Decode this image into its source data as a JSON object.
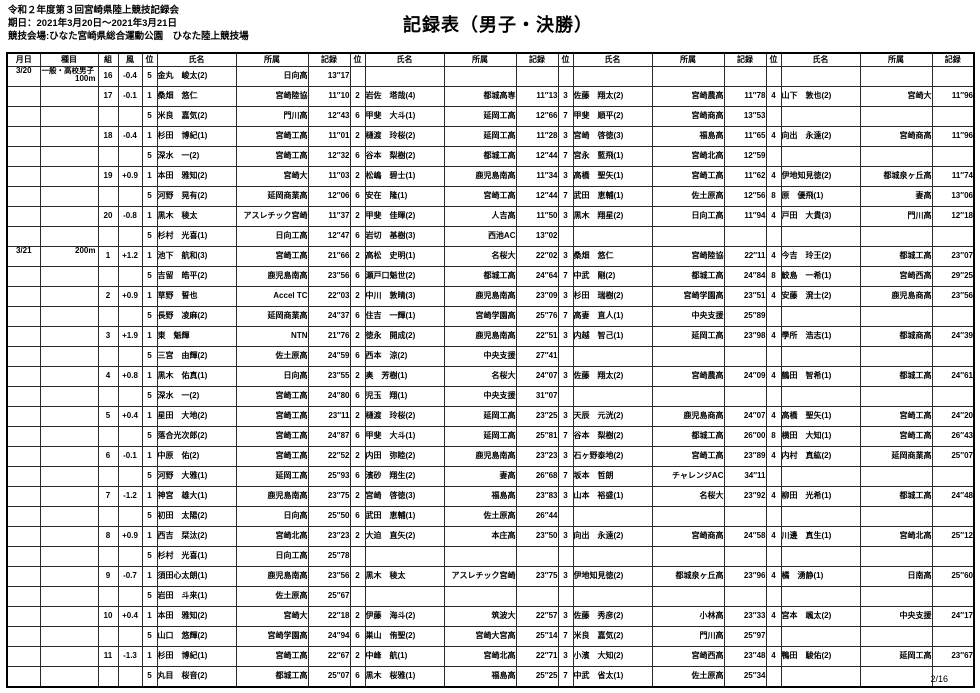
{
  "meta": {
    "competition": "令和２年度第３回宮崎県陸上競技記録会",
    "dates": "期日：2021年3月20日～2021年3月21日",
    "venue": "競技会場:ひなた宮崎県総合運動公園　ひなた陸上競技場",
    "title": "記録表（男子・決勝）",
    "page": "2/16"
  },
  "table": {
    "headers": [
      "月日",
      "種目",
      "組",
      "風",
      "位",
      "氏名",
      "所属",
      "記録",
      "位",
      "氏名",
      "所属",
      "記録",
      "位",
      "氏名",
      "所属",
      "記録",
      "位",
      "氏名",
      "所属",
      "記録"
    ],
    "rows": [
      {
        "date": "3/20",
        "event1": "一般・高校男子",
        "event2": "100m",
        "heat": "16",
        "wind": "-0.4",
        "athletes": [
          {
            "pos": "5",
            "name": "金丸　峻太(2)",
            "team": "日向高",
            "record": "13″17"
          },
          {},
          {},
          {}
        ]
      },
      {
        "date": "",
        "event1": "",
        "event2": "",
        "heat": "17",
        "wind": "-0.1",
        "athletes": [
          {
            "pos": "1",
            "name": "桑畑　悠仁",
            "team": "宮崎陸協",
            "record": "11″10"
          },
          {
            "pos": "2",
            "name": "岩佐　塔哉(4)",
            "team": "都城高専",
            "record": "11″13"
          },
          {
            "pos": "3",
            "name": "佐藤　翔太(2)",
            "team": "宮崎農高",
            "record": "11″78"
          },
          {
            "pos": "4",
            "name": "山下　敦也(2)",
            "team": "宮崎大",
            "record": "11″96"
          }
        ]
      },
      {
        "date": "",
        "event1": "",
        "event2": "",
        "heat": "",
        "wind": "",
        "athletes": [
          {
            "pos": "5",
            "name": "米良　嘉気(2)",
            "team": "門川高",
            "record": "12″43"
          },
          {
            "pos": "6",
            "name": "甲斐　大斗(1)",
            "team": "延岡工高",
            "record": "12″66"
          },
          {
            "pos": "7",
            "name": "甲斐　順平(2)",
            "team": "宮崎商高",
            "record": "13″53"
          },
          {}
        ]
      },
      {
        "date": "",
        "event1": "",
        "event2": "",
        "heat": "18",
        "wind": "-0.4",
        "athletes": [
          {
            "pos": "1",
            "name": "杉田　博紀(1)",
            "team": "宮崎工高",
            "record": "11″01"
          },
          {
            "pos": "2",
            "name": "樋渡　玲桜(2)",
            "team": "延岡工高",
            "record": "11″28"
          },
          {
            "pos": "3",
            "name": "宮崎　啓徳(3)",
            "team": "福島高",
            "record": "11″65"
          },
          {
            "pos": "4",
            "name": "向出　永遠(2)",
            "team": "宮崎商高",
            "record": "11″96"
          }
        ]
      },
      {
        "date": "",
        "event1": "",
        "event2": "",
        "heat": "",
        "wind": "",
        "athletes": [
          {
            "pos": "5",
            "name": "深水　一(2)",
            "team": "宮崎工高",
            "record": "12″32"
          },
          {
            "pos": "6",
            "name": "谷本　梨樹(2)",
            "team": "都城工高",
            "record": "12″44"
          },
          {
            "pos": "7",
            "name": "宮永　藍飛(1)",
            "team": "宮崎北高",
            "record": "12″59"
          },
          {}
        ]
      },
      {
        "date": "",
        "event1": "",
        "event2": "",
        "heat": "19",
        "wind": "+0.9",
        "athletes": [
          {
            "pos": "1",
            "name": "本田　雅知(2)",
            "team": "宮崎大",
            "record": "11″03"
          },
          {
            "pos": "2",
            "name": "松嶋　碧士(1)",
            "team": "鹿児島南高",
            "record": "11″34"
          },
          {
            "pos": "3",
            "name": "高橋　聖矢(1)",
            "team": "宮崎工高",
            "record": "11″62"
          },
          {
            "pos": "4",
            "name": "伊地知見徳(2)",
            "team": "都城泉ヶ丘高",
            "record": "11″74"
          }
        ]
      },
      {
        "date": "",
        "event1": "",
        "event2": "",
        "heat": "",
        "wind": "",
        "athletes": [
          {
            "pos": "5",
            "name": "河野　晃有(2)",
            "team": "延岡商業高",
            "record": "12″06"
          },
          {
            "pos": "6",
            "name": "安在　隆(1)",
            "team": "宮崎工高",
            "record": "12″44"
          },
          {
            "pos": "7",
            "name": "武田　恵輔(1)",
            "team": "佐土原高",
            "record": "12″56"
          },
          {
            "pos": "8",
            "name": "原　優飛(1)",
            "team": "妻高",
            "record": "13″06"
          }
        ]
      },
      {
        "date": "",
        "event1": "",
        "event2": "",
        "heat": "20",
        "wind": "-0.8",
        "athletes": [
          {
            "pos": "1",
            "name": "黒木　稜太",
            "team": "アスレチック宮崎",
            "record": "11″37"
          },
          {
            "pos": "2",
            "name": "甲斐　佳暉(2)",
            "team": "人吉高",
            "record": "11″50"
          },
          {
            "pos": "3",
            "name": "黒木　翔星(2)",
            "team": "日向工高",
            "record": "11″94"
          },
          {
            "pos": "4",
            "name": "戸田　大貴(3)",
            "team": "門川高",
            "record": "12″18"
          }
        ]
      },
      {
        "date": "",
        "event1": "",
        "event2": "",
        "heat": "",
        "wind": "",
        "athletes": [
          {
            "pos": "5",
            "name": "杉村　光喜(1)",
            "team": "日向工高",
            "record": "12″47"
          },
          {
            "pos": "6",
            "name": "岩切　基樹(3)",
            "team": "西池AC",
            "record": "13″02"
          },
          {},
          {}
        ]
      },
      {
        "date": "3/21",
        "event1": "",
        "event2": "200m",
        "heat": "1",
        "wind": "+1.2",
        "athletes": [
          {
            "pos": "1",
            "name": "池下　航和(3)",
            "team": "宮崎工高",
            "record": "21″66"
          },
          {
            "pos": "2",
            "name": "高松　史明(1)",
            "team": "名桜大",
            "record": "22″02"
          },
          {
            "pos": "3",
            "name": "桑畑　悠仁",
            "team": "宮崎陸協",
            "record": "22″11"
          },
          {
            "pos": "4",
            "name": "今吉　玲王(2)",
            "team": "都城工高",
            "record": "23″07"
          }
        ]
      },
      {
        "date": "",
        "event1": "",
        "event2": "",
        "heat": "",
        "wind": "",
        "athletes": [
          {
            "pos": "5",
            "name": "吉留　皓平(2)",
            "team": "鹿児島南高",
            "record": "23″56"
          },
          {
            "pos": "6",
            "name": "瀬戸口魁世(2)",
            "team": "都城工高",
            "record": "24″64"
          },
          {
            "pos": "7",
            "name": "中武　剛(2)",
            "team": "都城工高",
            "record": "24″84"
          },
          {
            "pos": "8",
            "name": "鮫島　一希(1)",
            "team": "宮崎西高",
            "record": "29″25"
          }
        ]
      },
      {
        "date": "",
        "event1": "",
        "event2": "",
        "heat": "2",
        "wind": "+0.9",
        "athletes": [
          {
            "pos": "1",
            "name": "草野　誓也",
            "team": "Accel TC",
            "record": "22″03"
          },
          {
            "pos": "2",
            "name": "中川　敦晴(3)",
            "team": "鹿児島南高",
            "record": "23″09"
          },
          {
            "pos": "3",
            "name": "杉田　瑞樹(2)",
            "team": "宮崎学園高",
            "record": "23″51"
          },
          {
            "pos": "4",
            "name": "安藤　溌士(2)",
            "team": "鹿児島商高",
            "record": "23″56"
          }
        ]
      },
      {
        "date": "",
        "event1": "",
        "event2": "",
        "heat": "",
        "wind": "",
        "athletes": [
          {
            "pos": "5",
            "name": "長野　凌麻(2)",
            "team": "延岡商業高",
            "record": "24″37"
          },
          {
            "pos": "6",
            "name": "住吉　一輝(1)",
            "team": "宮崎学園高",
            "record": "25″76"
          },
          {
            "pos": "7",
            "name": "高妻　直人(1)",
            "team": "中央支援",
            "record": "25″89"
          },
          {}
        ]
      },
      {
        "date": "",
        "event1": "",
        "event2": "",
        "heat": "3",
        "wind": "+1.9",
        "athletes": [
          {
            "pos": "1",
            "name": "東　魁輝",
            "team": "NTN",
            "record": "21″76"
          },
          {
            "pos": "2",
            "name": "徳永　開成(2)",
            "team": "鹿児島南高",
            "record": "22″51"
          },
          {
            "pos": "3",
            "name": "内越　智己(1)",
            "team": "延岡工高",
            "record": "23″98"
          },
          {
            "pos": "4",
            "name": "學所　浩志(1)",
            "team": "都城商高",
            "record": "24″39"
          }
        ]
      },
      {
        "date": "",
        "event1": "",
        "event2": "",
        "heat": "",
        "wind": "",
        "athletes": [
          {
            "pos": "5",
            "name": "三宮　由輝(2)",
            "team": "佐土原高",
            "record": "24″59"
          },
          {
            "pos": "6",
            "name": "西本　涼(2)",
            "team": "中央支援",
            "record": "27″41"
          },
          {},
          {}
        ]
      },
      {
        "date": "",
        "event1": "",
        "event2": "",
        "heat": "4",
        "wind": "+0.8",
        "athletes": [
          {
            "pos": "1",
            "name": "黒木　佑真(1)",
            "team": "日向高",
            "record": "23″55"
          },
          {
            "pos": "2",
            "name": "奥　芳樹(1)",
            "team": "名桜大",
            "record": "24″07"
          },
          {
            "pos": "3",
            "name": "佐藤　翔太(2)",
            "team": "宮崎農高",
            "record": "24″09"
          },
          {
            "pos": "4",
            "name": "鶴田　智希(1)",
            "team": "都城工高",
            "record": "24″61"
          }
        ]
      },
      {
        "date": "",
        "event1": "",
        "event2": "",
        "heat": "",
        "wind": "",
        "athletes": [
          {
            "pos": "5",
            "name": "深水　一(2)",
            "team": "宮崎工高",
            "record": "24″80"
          },
          {
            "pos": "6",
            "name": "児玉　翔(1)",
            "team": "中央支援",
            "record": "31″07"
          },
          {},
          {}
        ]
      },
      {
        "date": "",
        "event1": "",
        "event2": "",
        "heat": "5",
        "wind": "+0.4",
        "athletes": [
          {
            "pos": "1",
            "name": "星田　大地(2)",
            "team": "宮崎工高",
            "record": "23″11"
          },
          {
            "pos": "2",
            "name": "樋渡　玲桜(2)",
            "team": "延岡工高",
            "record": "23″25"
          },
          {
            "pos": "3",
            "name": "天辰　元洸(2)",
            "team": "鹿児島商高",
            "record": "24″07"
          },
          {
            "pos": "4",
            "name": "高橋　聖矢(1)",
            "team": "宮崎工高",
            "record": "24″20"
          }
        ]
      },
      {
        "date": "",
        "event1": "",
        "event2": "",
        "heat": "",
        "wind": "",
        "athletes": [
          {
            "pos": "5",
            "name": "落合光次郎(2)",
            "team": "宮崎工高",
            "record": "24″87"
          },
          {
            "pos": "6",
            "name": "甲斐　大斗(1)",
            "team": "延岡工高",
            "record": "25″81"
          },
          {
            "pos": "7",
            "name": "谷本　梨樹(2)",
            "team": "都城工高",
            "record": "26″00"
          },
          {
            "pos": "8",
            "name": "横田　大知(1)",
            "team": "宮崎工高",
            "record": "26″43"
          }
        ]
      },
      {
        "date": "",
        "event1": "",
        "event2": "",
        "heat": "6",
        "wind": "-0.1",
        "athletes": [
          {
            "pos": "1",
            "name": "中原　佑(2)",
            "team": "宮崎工高",
            "record": "22″52"
          },
          {
            "pos": "2",
            "name": "内田　弥睦(2)",
            "team": "鹿児島南高",
            "record": "23″23"
          },
          {
            "pos": "3",
            "name": "石ヶ野泰地(2)",
            "team": "宮崎工高",
            "record": "23″89"
          },
          {
            "pos": "4",
            "name": "内村　真紘(2)",
            "team": "延岡商業高",
            "record": "25″07"
          }
        ]
      },
      {
        "date": "",
        "event1": "",
        "event2": "",
        "heat": "",
        "wind": "",
        "athletes": [
          {
            "pos": "5",
            "name": "河野　大雅(1)",
            "team": "延岡工高",
            "record": "25″93"
          },
          {
            "pos": "6",
            "name": "濱砂　翔生(2)",
            "team": "妻高",
            "record": "26″68"
          },
          {
            "pos": "7",
            "name": "坂本　哲朗",
            "team": "チャレンジAC",
            "record": "34″11"
          },
          {}
        ]
      },
      {
        "date": "",
        "event1": "",
        "event2": "",
        "heat": "7",
        "wind": "-1.2",
        "athletes": [
          {
            "pos": "1",
            "name": "神宮　雄大(1)",
            "team": "鹿児島南高",
            "record": "23″75"
          },
          {
            "pos": "2",
            "name": "宮崎　啓徳(3)",
            "team": "福島高",
            "record": "23″83"
          },
          {
            "pos": "3",
            "name": "山本　裕盛(1)",
            "team": "名桜大",
            "record": "23″92"
          },
          {
            "pos": "4",
            "name": "柳田　光希(1)",
            "team": "都城工高",
            "record": "24″48"
          }
        ]
      },
      {
        "date": "",
        "event1": "",
        "event2": "",
        "heat": "",
        "wind": "",
        "athletes": [
          {
            "pos": "5",
            "name": "初田　太陽(2)",
            "team": "日向高",
            "record": "25″50"
          },
          {
            "pos": "6",
            "name": "武田　恵輔(1)",
            "team": "佐土原高",
            "record": "26″44"
          },
          {},
          {}
        ]
      },
      {
        "date": "",
        "event1": "",
        "event2": "",
        "heat": "8",
        "wind": "+0.9",
        "athletes": [
          {
            "pos": "1",
            "name": "西吉　栞汰(2)",
            "team": "宮崎北高",
            "record": "23″23"
          },
          {
            "pos": "2",
            "name": "大迫　直矢(2)",
            "team": "本庄高",
            "record": "23″50"
          },
          {
            "pos": "3",
            "name": "向出　永遠(2)",
            "team": "宮崎商高",
            "record": "24″58"
          },
          {
            "pos": "4",
            "name": "川邊　真生(1)",
            "team": "宮崎北高",
            "record": "25″12"
          }
        ]
      },
      {
        "date": "",
        "event1": "",
        "event2": "",
        "heat": "",
        "wind": "",
        "athletes": [
          {
            "pos": "5",
            "name": "杉村　光喜(1)",
            "team": "日向工高",
            "record": "25″78"
          },
          {},
          {},
          {}
        ]
      },
      {
        "date": "",
        "event1": "",
        "event2": "",
        "heat": "9",
        "wind": "-0.7",
        "athletes": [
          {
            "pos": "1",
            "name": "須田心太朗(1)",
            "team": "鹿児島南高",
            "record": "23″56"
          },
          {
            "pos": "2",
            "name": "黒木　稜太",
            "team": "アスレチック宮崎",
            "record": "23″75"
          },
          {
            "pos": "3",
            "name": "伊地知見徳(2)",
            "team": "都城泉ヶ丘高",
            "record": "23″96"
          },
          {
            "pos": "4",
            "name": "橘　湧静(1)",
            "team": "日南高",
            "record": "25″60"
          }
        ]
      },
      {
        "date": "",
        "event1": "",
        "event2": "",
        "heat": "",
        "wind": "",
        "athletes": [
          {
            "pos": "5",
            "name": "岩田　斗来(1)",
            "team": "佐土原高",
            "record": "25″67"
          },
          {},
          {},
          {}
        ]
      },
      {
        "date": "",
        "event1": "",
        "event2": "",
        "heat": "10",
        "wind": "+0.4",
        "athletes": [
          {
            "pos": "1",
            "name": "本田　雅知(2)",
            "team": "宮崎大",
            "record": "22″18"
          },
          {
            "pos": "2",
            "name": "伊藤　海斗(2)",
            "team": "筑波大",
            "record": "22″57"
          },
          {
            "pos": "3",
            "name": "佐藤　秀彦(2)",
            "team": "小林高",
            "record": "23″33"
          },
          {
            "pos": "4",
            "name": "宮本　颯太(2)",
            "team": "中央支援",
            "record": "24″17"
          }
        ]
      },
      {
        "date": "",
        "event1": "",
        "event2": "",
        "heat": "",
        "wind": "",
        "athletes": [
          {
            "pos": "5",
            "name": "山口　悠輝(2)",
            "team": "宮崎学園高",
            "record": "24″94"
          },
          {
            "pos": "6",
            "name": "巣山　侑聖(2)",
            "team": "宮崎大宮高",
            "record": "25″14"
          },
          {
            "pos": "7",
            "name": "米良　嘉気(2)",
            "team": "門川高",
            "record": "25″97"
          },
          {}
        ]
      },
      {
        "date": "",
        "event1": "",
        "event2": "",
        "heat": "11",
        "wind": "-1.3",
        "athletes": [
          {
            "pos": "1",
            "name": "杉田　博紀(1)",
            "team": "宮崎工高",
            "record": "22″67"
          },
          {
            "pos": "2",
            "name": "中峰　航(1)",
            "team": "宮崎北高",
            "record": "22″71"
          },
          {
            "pos": "3",
            "name": "小濱　大知(2)",
            "team": "宮崎西高",
            "record": "23″48"
          },
          {
            "pos": "4",
            "name": "鴨田　駿佑(2)",
            "team": "延岡工高",
            "record": "23″67"
          }
        ]
      },
      {
        "date": "",
        "event1": "",
        "event2": "",
        "heat": "",
        "wind": "",
        "athletes": [
          {
            "pos": "5",
            "name": "丸目　桜音(2)",
            "team": "都城工高",
            "record": "25″07"
          },
          {
            "pos": "6",
            "name": "黒木　桜雅(1)",
            "team": "福島高",
            "record": "25″25"
          },
          {
            "pos": "7",
            "name": "中武　省太(1)",
            "team": "佐土原高",
            "record": "25″34"
          },
          {}
        ]
      }
    ]
  }
}
